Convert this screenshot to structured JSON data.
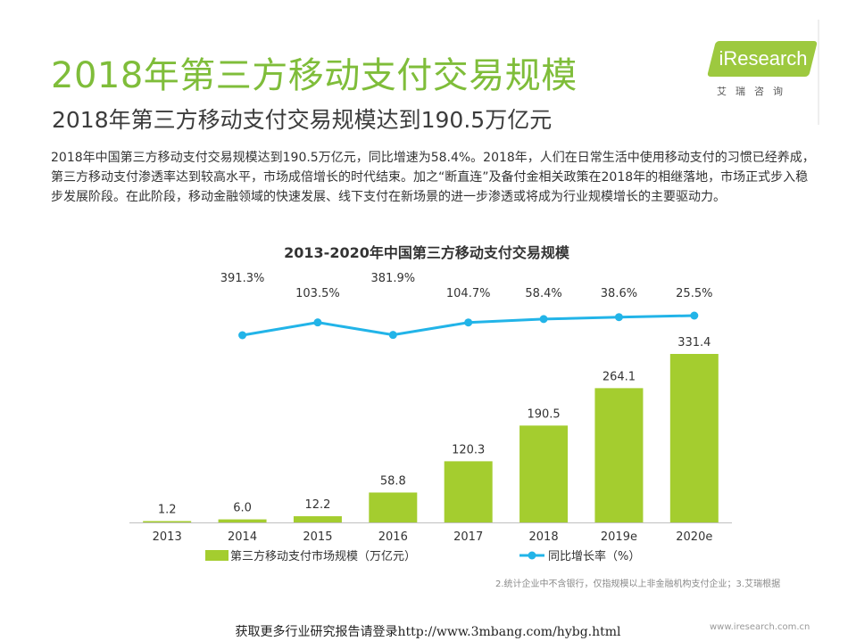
{
  "page": {
    "title": "2018年第三方移动支付交易规模",
    "subtitle": "2018年第三方移动支付交易规模达到190.5万亿元",
    "body": "2018年中国第三方移动支付交易规模达到190.5万亿元，同比增速为58.4%。2018年，人们在日常生活中使用移动支付的习惯已经养成，第三方移动支付渗透率达到较高水平，市场成倍增长的时代结束。加之“断直连”及备付金相关政策在2018年的相继落地，市场正式步入稳步发展阶段。在此阶段，移动金融领域的快速发展、线下支付在新场景的进一步渗透或将成为行业规模增长的主要驱动力。",
    "footnote": "2.统计企业中不含银行，仅指规模以上非金融机构支付企业；3.艾瑞根据",
    "site": "www.iresearch.com.cn",
    "watermark": "获取更多行业研究报告请登录http://www.3mbang.com/hybg.html"
  },
  "logo": {
    "name": "iResearch",
    "subtitle": "艾瑞咨询"
  },
  "colors": {
    "title_green": "#7fbd3a",
    "bar_green": "#a4cd2f",
    "line_blue": "#22b4e8"
  },
  "chart_data": {
    "type": "bar",
    "title": "2013-2020年中国第三方移动支付交易规模",
    "categories": [
      "2013",
      "2014",
      "2015",
      "2016",
      "2017",
      "2018",
      "2019e",
      "2020e"
    ],
    "series": [
      {
        "name": "第三方移动支付市场规模（万亿元）",
        "type": "bar",
        "values": [
          1.2,
          6.0,
          12.2,
          58.8,
          120.3,
          190.5,
          264.1,
          331.4
        ],
        "labels": [
          "1.2",
          "6.0",
          "12.2",
          "58.8",
          "120.3",
          "190.5",
          "264.1",
          "331.4"
        ]
      },
      {
        "name": "同比增长率（%）",
        "type": "line",
        "values": [
          null,
          391.3,
          103.5,
          381.9,
          104.7,
          58.4,
          38.6,
          25.5
        ],
        "labels": [
          "",
          "391.3%",
          "103.5%",
          "381.9%",
          "104.7%",
          "58.4%",
          "38.6%",
          "25.5%"
        ]
      }
    ],
    "legend_position": "bottom",
    "grid": false
  }
}
